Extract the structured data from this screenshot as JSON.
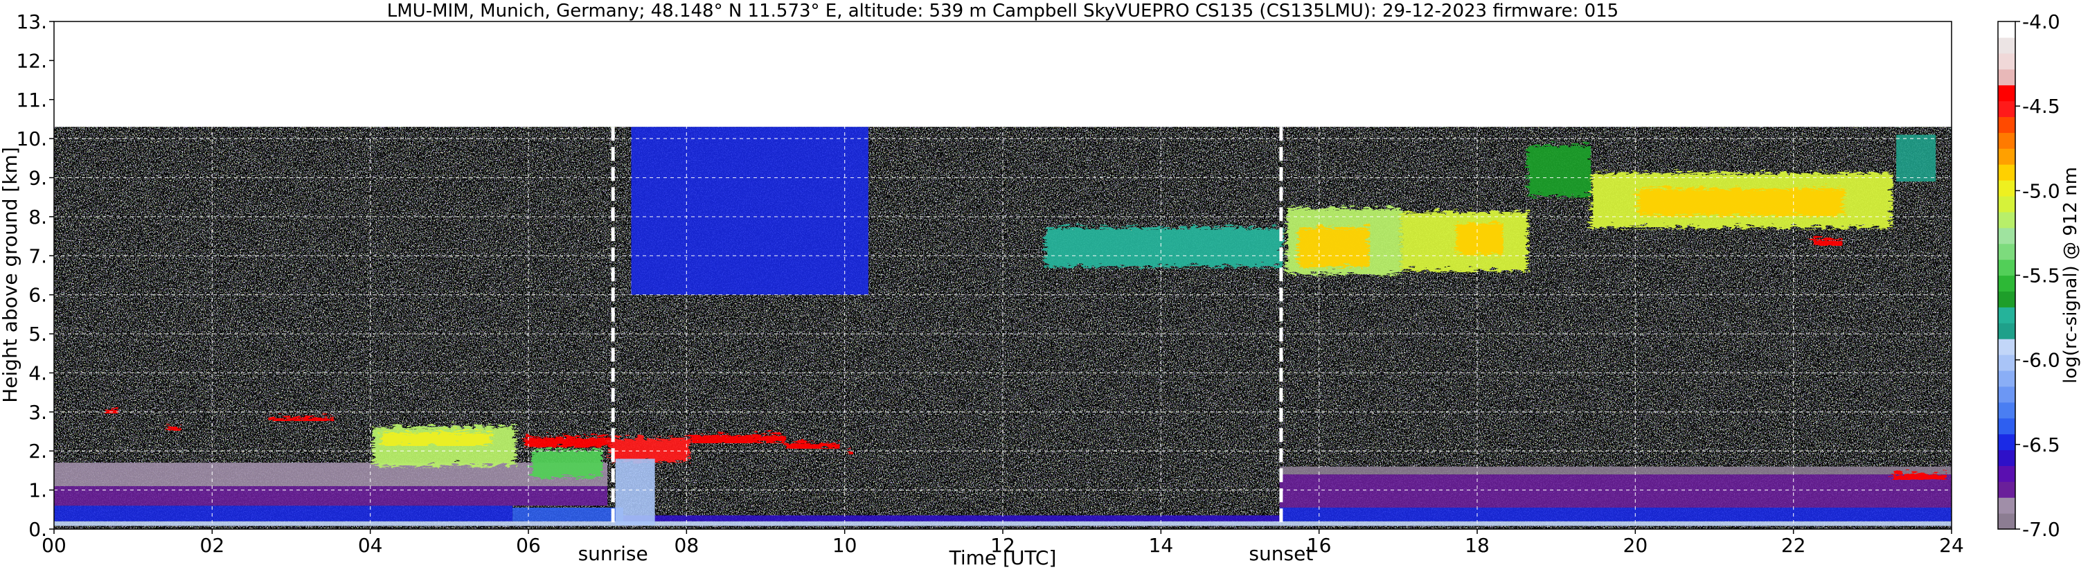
{
  "chart_data": {
    "type": "heatmap",
    "title": "LMU-MIM, Munich, Germany; 48.148° N 11.573° E, altitude: 539 m    Campbell SkyVUEPRO CS135 (CS135LMU): 29-12-2023    firmware: 015",
    "xlabel": "Time [UTC]",
    "ylabel": "Height above ground [km]",
    "xlim": [
      0,
      24
    ],
    "ylim": [
      0,
      13
    ],
    "x_tick_labels": [
      "00",
      "02",
      "04",
      "06",
      "08",
      "10",
      "12",
      "14",
      "16",
      "18",
      "20",
      "22",
      "24"
    ],
    "y_tick_labels": [
      "0.",
      "1.",
      "2.",
      "3.",
      "4.",
      "5.",
      "6.",
      "7.",
      "8.",
      "9.",
      "10.",
      "11.",
      "12.",
      "13."
    ],
    "grid": true,
    "data_top_km": 10.3,
    "annotations": [
      {
        "label": "sunrise",
        "x": 7.07
      },
      {
        "label": "sunset",
        "x": 15.52
      }
    ],
    "colorbar": {
      "label": "log(rc-signal) @ 912 nm",
      "range": [
        -7.0,
        -4.0
      ],
      "tick_labels": [
        "-4.0",
        "-4.5",
        "-5.0",
        "-5.5",
        "-6.0",
        "-6.5",
        "-7.0"
      ],
      "tick_values": [
        -4.0,
        -4.5,
        -5.0,
        -5.5,
        -6.0,
        -6.5,
        -7.0
      ],
      "colors": [
        "#8c7d92",
        "#a08ea8",
        "#6a1f9a",
        "#5a0fb0",
        "#2e10c8",
        "#1a2ae6",
        "#2e5ff0",
        "#4a7ef2",
        "#6c97f4",
        "#8aaef6",
        "#a9c4f7",
        "#c2d6f8",
        "#1fa08a",
        "#25b39a",
        "#1e9e2a",
        "#2db836",
        "#52cf58",
        "#7ddb7d",
        "#9fe39f",
        "#b8ef6a",
        "#d6f23a",
        "#eef020",
        "#ffd000",
        "#ffa000",
        "#ff7a00",
        "#ff4a00",
        "#ff1a1a",
        "#ff0000",
        "#e8b8b8",
        "#f0d8d8",
        "#ece4e4",
        "#ffffff"
      ]
    },
    "series": [
      {
        "values": [
          {
            "x0": 0.0,
            "x1": 24.0,
            "y0": 0.08,
            "y1": 0.2,
            "level": -5.9
          },
          {
            "x0": 0.0,
            "x1": 5.8,
            "y0": 0.2,
            "y1": 0.6,
            "level": -6.45
          },
          {
            "x0": 5.8,
            "x1": 7.2,
            "y0": 0.2,
            "y1": 0.55,
            "level": -6.4
          },
          {
            "x0": 7.2,
            "x1": 15.5,
            "y0": 0.2,
            "y1": 0.35,
            "level": -6.55
          },
          {
            "x0": 15.5,
            "x1": 24.0,
            "y0": 0.2,
            "y1": 0.55,
            "level": -6.45
          },
          {
            "x0": 0.0,
            "x1": 7.0,
            "y0": 0.6,
            "y1": 1.1,
            "level": -6.75
          },
          {
            "x0": 15.5,
            "x1": 24.0,
            "y0": 0.55,
            "y1": 1.4,
            "level": -6.8
          },
          {
            "x0": 0.0,
            "x1": 7.0,
            "y0": 1.1,
            "y1": 1.7,
            "level": -6.9
          },
          {
            "x0": 15.5,
            "x1": 24.0,
            "y0": 1.4,
            "y1": 1.6,
            "level": -6.92
          },
          {
            "x0": 0.6,
            "x1": 0.8,
            "y0": 3.0,
            "y1": 3.15,
            "level": -4.4
          },
          {
            "x0": 1.4,
            "x1": 1.6,
            "y0": 2.55,
            "y1": 2.7,
            "level": -4.4
          },
          {
            "x0": 2.7,
            "x1": 3.5,
            "y0": 2.8,
            "y1": 2.95,
            "level": -4.4
          },
          {
            "x0": 4.0,
            "x1": 5.8,
            "y0": 1.7,
            "y1": 2.7,
            "level": -5.2
          },
          {
            "x0": 4.1,
            "x1": 5.5,
            "y0": 2.2,
            "y1": 2.55,
            "level": -5.0
          },
          {
            "x0": 5.9,
            "x1": 7.0,
            "y0": 2.15,
            "y1": 2.45,
            "level": -4.4
          },
          {
            "x0": 6.0,
            "x1": 6.9,
            "y0": 1.4,
            "y1": 2.1,
            "level": -5.5
          },
          {
            "x0": 7.0,
            "x1": 8.0,
            "y0": 1.8,
            "y1": 2.4,
            "level": -4.5
          },
          {
            "x0": 7.1,
            "x1": 7.6,
            "y0": 0.1,
            "y1": 1.8,
            "level": -6.0
          },
          {
            "x0": 8.0,
            "x1": 9.2,
            "y0": 2.25,
            "y1": 2.5,
            "level": -4.4
          },
          {
            "x0": 9.2,
            "x1": 9.9,
            "y0": 2.1,
            "y1": 2.3,
            "level": -4.4
          },
          {
            "x0": 10.0,
            "x1": 10.1,
            "y0": 1.95,
            "y1": 2.1,
            "level": -4.4
          },
          {
            "x0": 7.3,
            "x1": 10.3,
            "y0": 6.0,
            "y1": 10.3,
            "level": -6.5
          },
          {
            "x0": 12.5,
            "x1": 15.5,
            "y0": 6.8,
            "y1": 7.8,
            "level": -5.7
          },
          {
            "x0": 15.55,
            "x1": 17.0,
            "y0": 6.6,
            "y1": 8.3,
            "level": -5.2
          },
          {
            "x0": 15.7,
            "x1": 16.6,
            "y0": 6.8,
            "y1": 7.8,
            "level": -4.9
          },
          {
            "x0": 17.0,
            "x1": 18.6,
            "y0": 6.7,
            "y1": 8.2,
            "level": -5.1
          },
          {
            "x0": 17.7,
            "x1": 18.3,
            "y0": 7.1,
            "y1": 7.9,
            "level": -4.9
          },
          {
            "x0": 18.6,
            "x1": 19.4,
            "y0": 8.6,
            "y1": 9.9,
            "level": -5.6
          },
          {
            "x0": 19.4,
            "x1": 23.2,
            "y0": 7.8,
            "y1": 9.2,
            "level": -5.1
          },
          {
            "x0": 20.0,
            "x1": 22.6,
            "y0": 8.1,
            "y1": 8.8,
            "level": -4.9
          },
          {
            "x0": 22.2,
            "x1": 22.6,
            "y0": 7.3,
            "y1": 7.5,
            "level": -4.4
          },
          {
            "x0": 23.2,
            "x1": 23.9,
            "y0": 1.3,
            "y1": 1.5,
            "level": -4.4
          },
          {
            "x0": 23.3,
            "x1": 23.8,
            "y0": 8.9,
            "y1": 10.1,
            "level": -5.8
          }
        ]
      }
    ]
  }
}
